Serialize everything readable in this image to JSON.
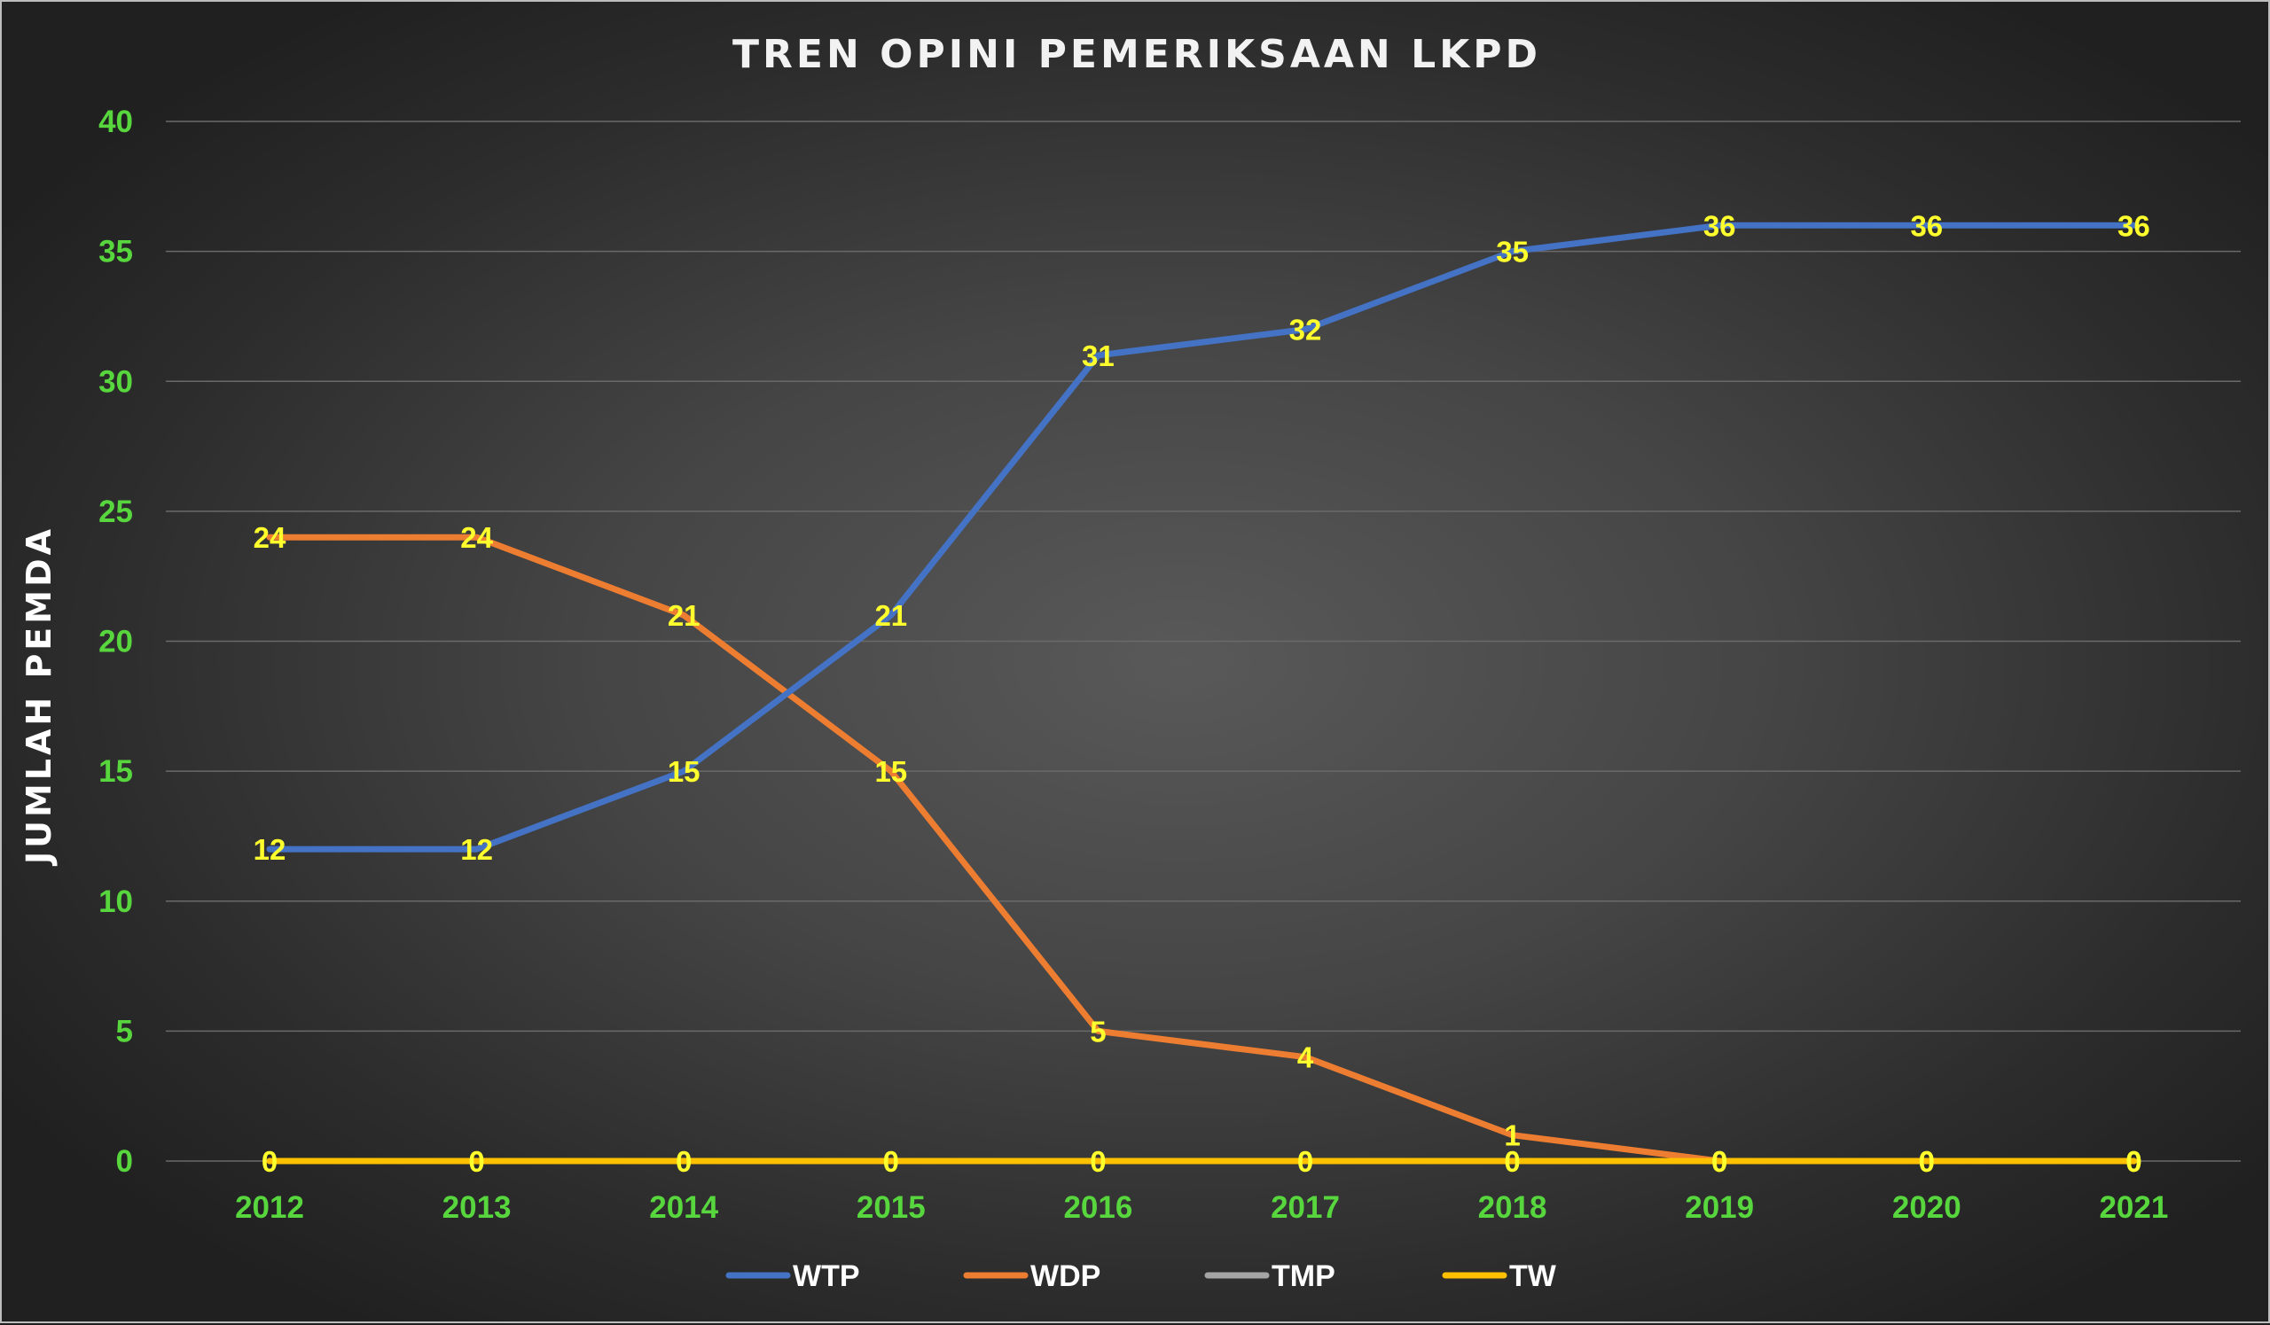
{
  "chart_data": {
    "type": "line",
    "title": "TREN OPINI PEMERIKSAAN LKPD",
    "xlabel": "",
    "ylabel": "JUMLAH PEMDA",
    "x": [
      "2012",
      "2013",
      "2014",
      "2015",
      "2016",
      "2017",
      "2018",
      "2019",
      "2020",
      "2021"
    ],
    "ylim": [
      0,
      40
    ],
    "yticks": [
      "0",
      "5",
      "10",
      "15",
      "20",
      "25",
      "30",
      "35",
      "40"
    ],
    "grid": true,
    "legend_position": "bottom",
    "series": [
      {
        "name": "WTP",
        "color": "#4472c4",
        "values": [
          12,
          12,
          15,
          21,
          31,
          32,
          35,
          36,
          36,
          36
        ]
      },
      {
        "name": "WDP",
        "color": "#ed7d31",
        "values": [
          24,
          24,
          21,
          15,
          5,
          4,
          1,
          0,
          0,
          0
        ]
      },
      {
        "name": "TMP",
        "color": "#a5a5a5",
        "values": [
          0,
          0,
          0,
          0,
          0,
          0,
          0,
          0,
          0,
          0
        ]
      },
      {
        "name": "TW",
        "color": "#ffc000",
        "values": [
          0,
          0,
          0,
          0,
          0,
          0,
          0,
          0,
          0,
          0
        ]
      }
    ],
    "data_label_color": "#ffff2e",
    "tick_color": "#57d63d"
  }
}
